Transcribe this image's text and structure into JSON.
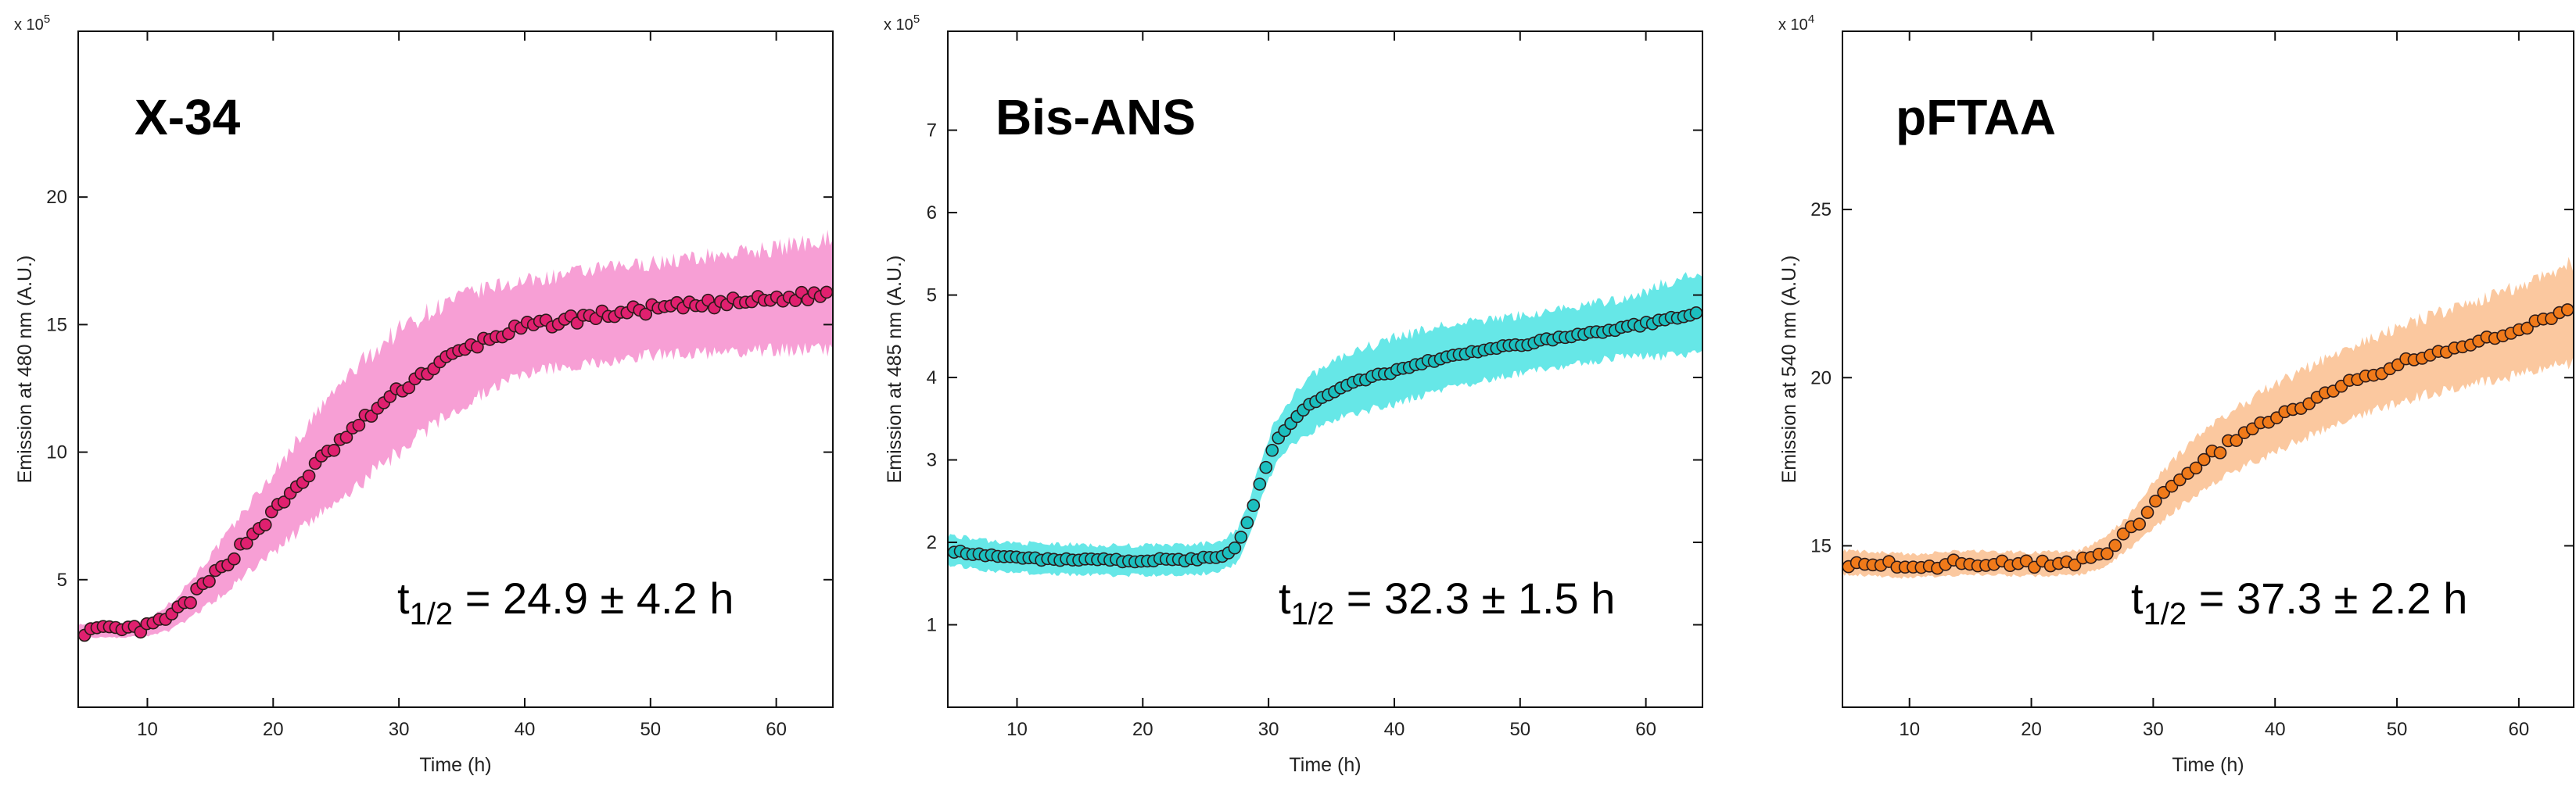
{
  "chart_data": [
    {
      "type": "scatter",
      "title": "X-34",
      "xlabel": "Time (h)",
      "ylabel": "Emission at 480 nm (A.U.)",
      "y_multiplier": "x 10",
      "y_multiplier_exp": "5",
      "xlim": [
        4.5,
        64.5
      ],
      "ylim": [
        0,
        26.5
      ],
      "xticks": [
        10,
        20,
        30,
        40,
        50,
        60
      ],
      "yticks": [
        5,
        10,
        15,
        20
      ],
      "annotation": {
        "t": "t",
        "sub": "1/2",
        "text": " = 24.9 ± 4.2 h"
      },
      "colors": {
        "marker": "#e0206f",
        "band": "#f79ad3"
      },
      "series": [
        {
          "curve": [
            [
              5,
              3.0
            ],
            [
              8,
              3.0
            ],
            [
              10,
              3.1
            ],
            [
              12,
              3.6
            ],
            [
              14,
              4.5
            ],
            [
              16,
              5.5
            ],
            [
              18,
              6.6
            ],
            [
              20,
              7.6
            ],
            [
              22,
              8.7
            ],
            [
              24,
              9.8
            ],
            [
              26,
              10.7
            ],
            [
              28,
              11.6
            ],
            [
              30,
              12.4
            ],
            [
              32,
              13.1
            ],
            [
              34,
              13.7
            ],
            [
              36,
              14.2
            ],
            [
              38,
              14.6
            ],
            [
              40,
              14.9
            ],
            [
              45,
              15.3
            ],
            [
              50,
              15.6
            ],
            [
              55,
              15.8
            ],
            [
              60,
              16.0
            ],
            [
              64,
              16.2
            ]
          ],
          "band": [
            [
              5,
              0.25
            ],
            [
              10,
              0.3
            ],
            [
              14,
              0.8
            ],
            [
              18,
              1.3
            ],
            [
              22,
              1.8
            ],
            [
              26,
              2.3
            ],
            [
              30,
              2.4
            ],
            [
              34,
              2.2
            ],
            [
              40,
              1.8
            ],
            [
              50,
              1.8
            ],
            [
              60,
              2.0
            ],
            [
              64,
              2.2
            ]
          ],
          "n_points": 120,
          "noise": 0.18
        }
      ]
    },
    {
      "type": "scatter",
      "title": "Bis-ANS",
      "xlabel": "Time (h)",
      "ylabel": "Emission at 485 nm (A.U.)",
      "y_multiplier": "x 10",
      "y_multiplier_exp": "5",
      "xlim": [
        4.5,
        64.5
      ],
      "ylim": [
        0,
        8.2
      ],
      "xticks": [
        10,
        20,
        30,
        40,
        50,
        60
      ],
      "yticks": [
        1,
        2,
        3,
        4,
        5,
        6,
        7
      ],
      "annotation": {
        "t": "t",
        "sub": "1/2",
        "text": " = 32.3 ± 1.5 h"
      },
      "colors": {
        "marker": "#1cbfbf",
        "band": "#5ee6e6"
      },
      "series": [
        {
          "curve": [
            [
              5,
              1.9
            ],
            [
              8,
              1.83
            ],
            [
              12,
              1.8
            ],
            [
              18,
              1.78
            ],
            [
              24,
              1.79
            ],
            [
              26,
              1.82
            ],
            [
              27.5,
              1.95
            ],
            [
              28.5,
              2.3
            ],
            [
              29.5,
              2.8
            ],
            [
              30.5,
              3.2
            ],
            [
              32,
              3.5
            ],
            [
              34,
              3.75
            ],
            [
              36,
              3.9
            ],
            [
              40,
              4.08
            ],
            [
              44,
              4.25
            ],
            [
              48,
              4.35
            ],
            [
              52,
              4.45
            ],
            [
              56,
              4.55
            ],
            [
              60,
              4.65
            ],
            [
              64,
              4.78
            ]
          ],
          "band": [
            [
              5,
              0.18
            ],
            [
              20,
              0.18
            ],
            [
              26,
              0.18
            ],
            [
              30,
              0.25
            ],
            [
              34,
              0.35
            ],
            [
              40,
              0.4
            ],
            [
              50,
              0.35
            ],
            [
              58,
              0.35
            ],
            [
              62,
              0.45
            ],
            [
              64,
              0.5
            ]
          ],
          "n_points": 120,
          "noise": 0.02
        }
      ]
    },
    {
      "type": "scatter",
      "title": "pFTAA",
      "xlabel": "Time (h)",
      "ylabel": "Emission at 540 nm (A.U.)",
      "y_multiplier": "x 10",
      "y_multiplier_exp": "4",
      "xlim": [
        4.5,
        64.5
      ],
      "ylim": [
        10.2,
        30.3
      ],
      "xticks": [
        10,
        20,
        30,
        40,
        50,
        60
      ],
      "yticks": [
        15,
        20,
        25
      ],
      "annotation": {
        "t": "t",
        "sub": "1/2",
        "text": " = 37.3 ± 2.2 h"
      },
      "colors": {
        "marker": "#f07a1a",
        "band": "#fbc59a"
      },
      "series": [
        {
          "curve": [
            [
              5,
              14.5
            ],
            [
              10,
              14.4
            ],
            [
              15,
              14.5
            ],
            [
              20,
              14.45
            ],
            [
              24,
              14.5
            ],
            [
              26,
              14.8
            ],
            [
              28,
              15.4
            ],
            [
              30,
              16.2
            ],
            [
              32,
              16.9
            ],
            [
              34,
              17.5
            ],
            [
              36,
              18.0
            ],
            [
              40,
              18.8
            ],
            [
              44,
              19.5
            ],
            [
              48,
              20.1
            ],
            [
              52,
              20.6
            ],
            [
              56,
              21.0
            ],
            [
              60,
              21.4
            ],
            [
              64,
              21.9
            ]
          ],
          "band": [
            [
              5,
              0.35
            ],
            [
              24,
              0.35
            ],
            [
              28,
              0.5
            ],
            [
              32,
              0.8
            ],
            [
              40,
              1.0
            ],
            [
              50,
              1.1
            ],
            [
              60,
              1.3
            ],
            [
              64,
              1.5
            ]
          ],
          "n_points": 90,
          "noise": 0.12
        }
      ]
    }
  ]
}
